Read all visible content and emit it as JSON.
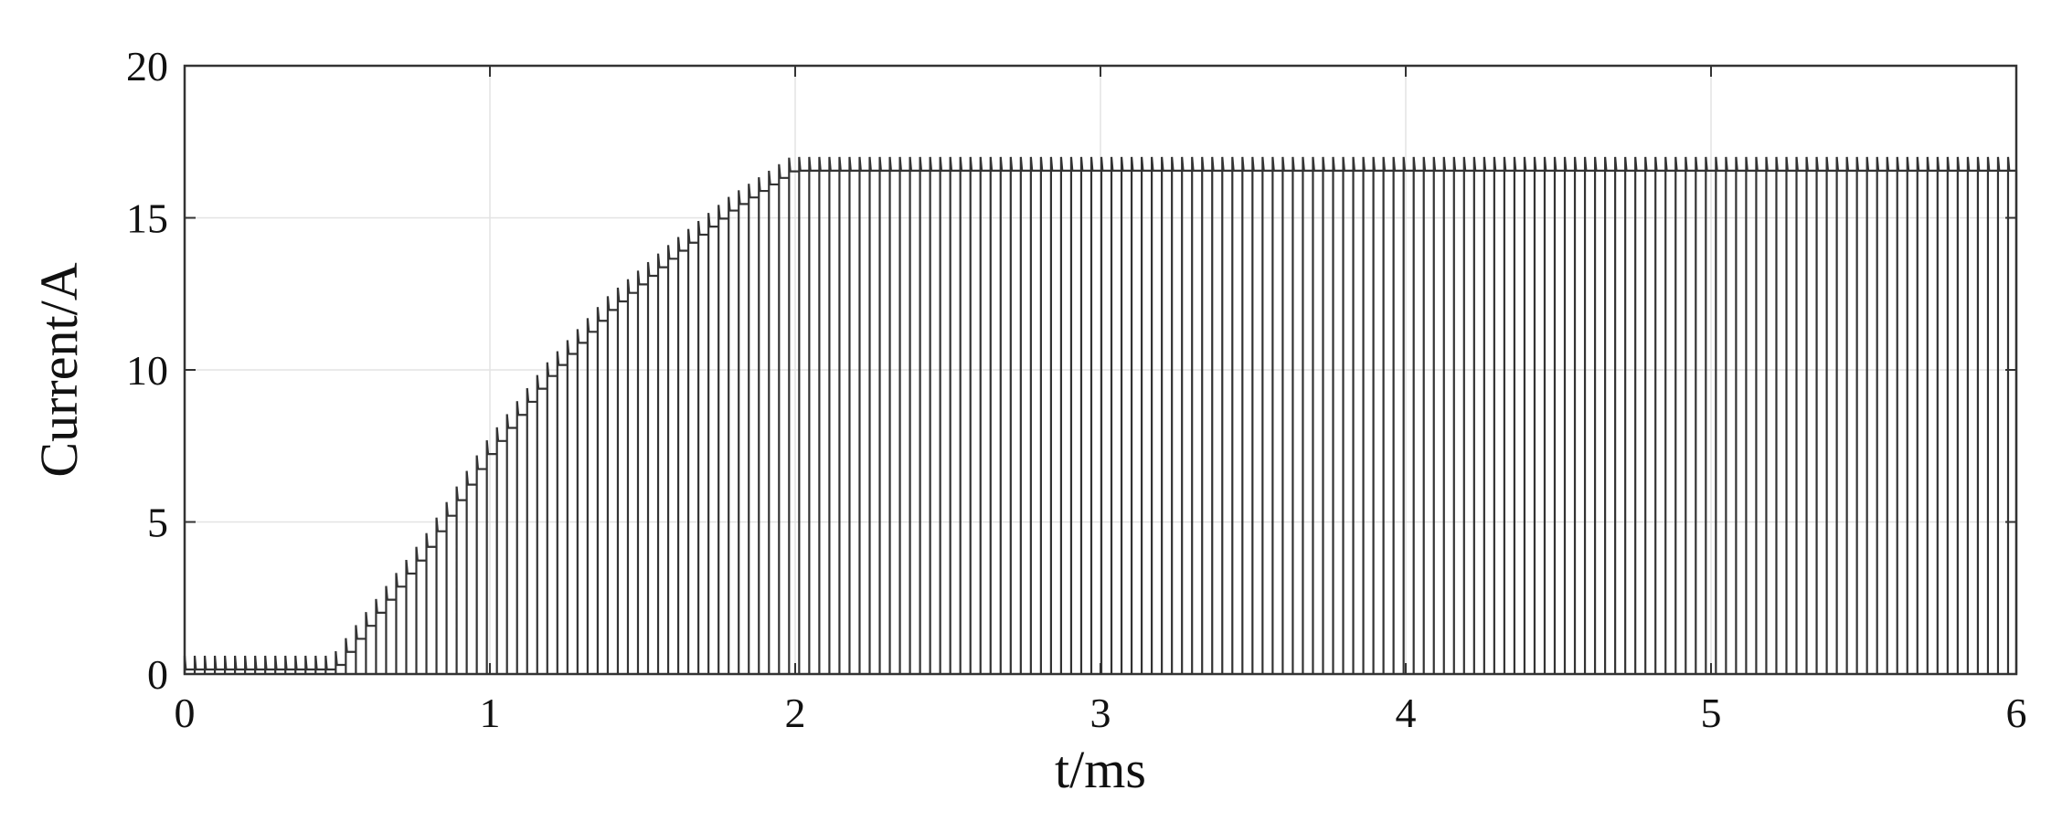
{
  "chart_data": {
    "type": "line",
    "title": "",
    "xlabel": "t/ms",
    "ylabel": "Current/A",
    "xlim": [
      0,
      6
    ],
    "ylim": [
      0,
      20
    ],
    "xticks": [
      "0",
      "1",
      "2",
      "3",
      "4",
      "5",
      "6"
    ],
    "yticks": [
      "0",
      "5",
      "10",
      "15",
      "20"
    ],
    "grid": true,
    "line_color": "#333333",
    "series": [
      {
        "style": "pulsed",
        "pulse_period_ms": 0.033,
        "envelope": [
          {
            "t": 0.0,
            "i": 0.6
          },
          {
            "t": 0.48,
            "i": 0.6
          },
          {
            "t": 0.5,
            "i": 0.6
          },
          {
            "t": 0.6,
            "i": 1.9
          },
          {
            "t": 0.8,
            "i": 4.5
          },
          {
            "t": 1.0,
            "i": 7.6
          },
          {
            "t": 1.2,
            "i": 10.2
          },
          {
            "t": 1.4,
            "i": 12.4
          },
          {
            "t": 1.6,
            "i": 14.1
          },
          {
            "t": 1.8,
            "i": 15.7
          },
          {
            "t": 2.0,
            "i": 17.0
          },
          {
            "t": 6.0,
            "i": 17.0
          }
        ]
      }
    ]
  }
}
